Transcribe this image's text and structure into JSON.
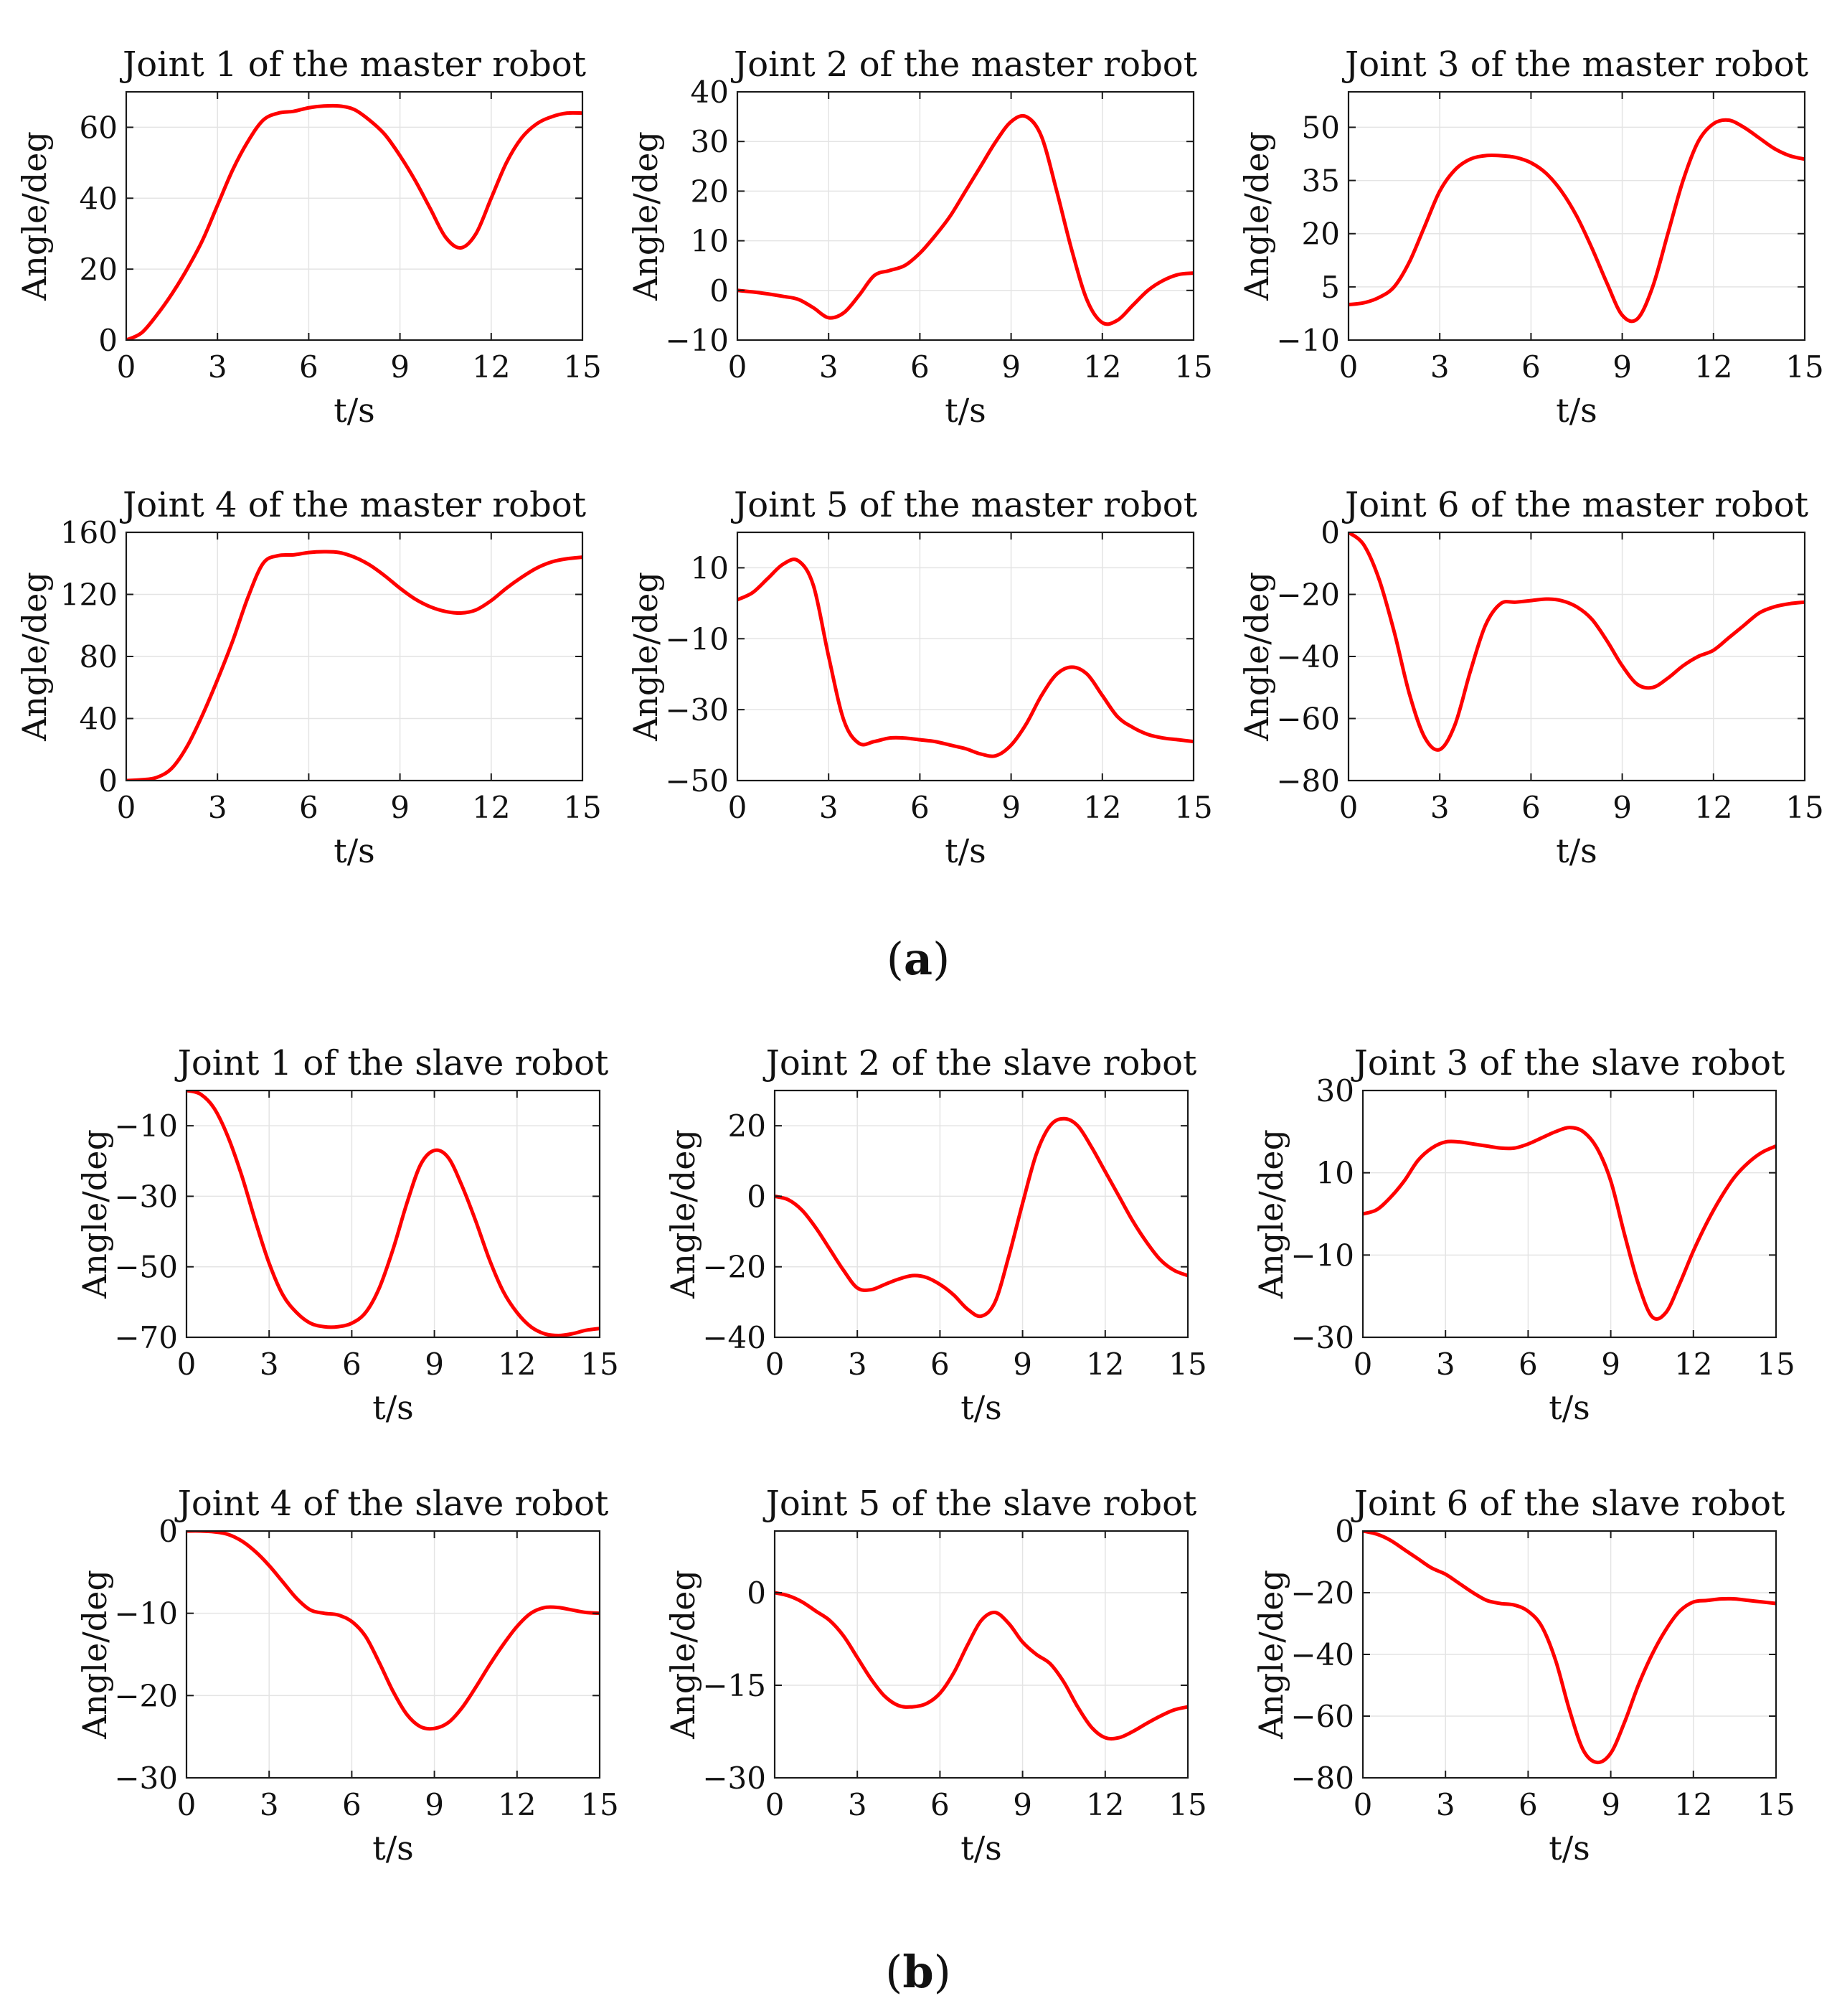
{
  "figure": {
    "group_labels": [
      {
        "open": "(",
        "letter": "a",
        "close": ")"
      },
      {
        "open": "(",
        "letter": "b",
        "close": ")"
      }
    ]
  },
  "chart_data": [
    {
      "type": "line",
      "title": "Joint 1 of the master robot",
      "xlabel": "t/s",
      "ylabel": "Angle/deg",
      "xlim": [
        0,
        15
      ],
      "ylim": [
        0,
        70
      ],
      "xticks": [
        0,
        3,
        6,
        9,
        12,
        15
      ],
      "yticks": [
        0,
        20,
        40,
        60
      ],
      "ytick_labels": [
        "0",
        "20",
        "40",
        "60"
      ],
      "grid": true,
      "color": "#ff0000",
      "x": [
        0,
        0.5,
        1,
        1.5,
        2,
        2.5,
        3,
        3.5,
        4,
        4.5,
        5,
        5.5,
        6,
        6.5,
        7,
        7.5,
        8,
        8.5,
        9,
        9.5,
        10,
        10.5,
        11,
        11.5,
        12,
        12.5,
        13,
        13.5,
        14,
        14.5,
        15
      ],
      "y": [
        0,
        2,
        7,
        13,
        20,
        28,
        38,
        48,
        56,
        62,
        64,
        64.5,
        65.5,
        66,
        66,
        65,
        62,
        58,
        52,
        45,
        37,
        29,
        26,
        30,
        40,
        50,
        57,
        61,
        63,
        64,
        64
      ]
    },
    {
      "type": "line",
      "title": "Joint 2 of the master robot",
      "xlabel": "t/s",
      "ylabel": "Angle/deg",
      "xlim": [
        0,
        15
      ],
      "ylim": [
        -10,
        40
      ],
      "xticks": [
        0,
        3,
        6,
        9,
        12,
        15
      ],
      "yticks": [
        -10,
        0,
        10,
        20,
        30,
        40
      ],
      "ytick_labels": [
        "−10",
        "0",
        "10",
        "20",
        "30",
        "40"
      ],
      "grid": true,
      "color": "#ff0000",
      "x": [
        0,
        0.5,
        1,
        1.5,
        2,
        2.5,
        3,
        3.5,
        4,
        4.5,
        5,
        5.5,
        6,
        6.5,
        7,
        7.5,
        8,
        8.5,
        9,
        9.5,
        10,
        10.5,
        11,
        11.5,
        12,
        12.5,
        13,
        13.5,
        14,
        14.5,
        15
      ],
      "y": [
        0,
        -0.3,
        -0.7,
        -1.2,
        -1.8,
        -3.5,
        -5.5,
        -4.5,
        -1,
        3,
        4,
        5,
        7.5,
        11,
        15,
        20,
        25,
        30,
        34,
        35,
        31,
        20,
        8,
        -2,
        -6.5,
        -6,
        -3,
        0,
        2,
        3.2,
        3.5
      ]
    },
    {
      "type": "line",
      "title": "Joint 3 of the master robot",
      "xlabel": "t/s",
      "ylabel": "Angle/deg",
      "xlim": [
        0,
        15
      ],
      "ylim": [
        -10,
        60
      ],
      "xticks": [
        0,
        3,
        6,
        9,
        12,
        15
      ],
      "yticks": [
        -10,
        5,
        20,
        35,
        50
      ],
      "ytick_labels": [
        "−10",
        "5",
        "20",
        "35",
        "50"
      ],
      "grid": true,
      "color": "#ff0000",
      "x": [
        0,
        0.5,
        1,
        1.5,
        2,
        2.5,
        3,
        3.5,
        4,
        4.5,
        5,
        5.5,
        6,
        6.5,
        7,
        7.5,
        8,
        8.5,
        9,
        9.5,
        10,
        10.5,
        11,
        11.5,
        12,
        12.5,
        13,
        13.5,
        14,
        14.5,
        15
      ],
      "y": [
        0,
        0.5,
        2,
        5,
        12,
        22,
        32,
        38,
        41,
        42,
        42,
        41.5,
        40,
        37,
        32,
        25,
        16,
        6,
        -3,
        -4,
        5,
        20,
        35,
        46,
        51,
        52,
        50,
        47,
        44,
        42,
        41
      ]
    },
    {
      "type": "line",
      "title": "Joint 4 of the master robot",
      "xlabel": "t/s",
      "ylabel": "Angle/deg",
      "xlim": [
        0,
        15
      ],
      "ylim": [
        0,
        160
      ],
      "xticks": [
        0,
        3,
        6,
        9,
        12,
        15
      ],
      "yticks": [
        0,
        40,
        80,
        120,
        160
      ],
      "ytick_labels": [
        "0",
        "40",
        "80",
        "120",
        "160"
      ],
      "grid": true,
      "color": "#ff0000",
      "x": [
        0,
        0.5,
        1,
        1.5,
        2,
        2.5,
        3,
        3.5,
        4,
        4.5,
        5,
        5.5,
        6,
        6.5,
        7,
        7.5,
        8,
        8.5,
        9,
        9.5,
        10,
        10.5,
        11,
        11.5,
        12,
        12.5,
        13,
        13.5,
        14,
        14.5,
        15
      ],
      "y": [
        0,
        0.5,
        2,
        8,
        22,
        42,
        65,
        90,
        118,
        140,
        145,
        145.5,
        147,
        147.5,
        147,
        144,
        139,
        132,
        124,
        117,
        112,
        109,
        108,
        110,
        116,
        124,
        131,
        137,
        141,
        143,
        144
      ]
    },
    {
      "type": "line",
      "title": "Joint 5 of the master robot",
      "xlabel": "t/s",
      "ylabel": "Angle/deg",
      "xlim": [
        0,
        15
      ],
      "ylim": [
        -50,
        20
      ],
      "xticks": [
        0,
        3,
        6,
        9,
        12,
        15
      ],
      "yticks": [
        -50,
        -30,
        -10,
        10
      ],
      "ytick_labels": [
        "−50",
        "−30",
        "−10",
        "10"
      ],
      "grid": true,
      "color": "#ff0000",
      "x": [
        0,
        0.5,
        1,
        1.5,
        2,
        2.5,
        3,
        3.5,
        4,
        4.5,
        5,
        5.5,
        6,
        6.5,
        7,
        7.5,
        8,
        8.5,
        9,
        9.5,
        10,
        10.5,
        11,
        11.5,
        12,
        12.5,
        13,
        13.5,
        14,
        14.5,
        15
      ],
      "y": [
        1,
        3,
        7,
        11,
        12,
        5,
        -15,
        -33,
        -39.5,
        -39,
        -38,
        -38,
        -38.5,
        -39,
        -40,
        -41,
        -42.5,
        -43,
        -40,
        -34,
        -26,
        -20,
        -18,
        -20,
        -26,
        -32,
        -35,
        -37,
        -38,
        -38.5,
        -39
      ]
    },
    {
      "type": "line",
      "title": "Joint 6 of the master robot",
      "xlabel": "t/s",
      "ylabel": "Angle/deg",
      "xlim": [
        0,
        15
      ],
      "ylim": [
        -80,
        0
      ],
      "xticks": [
        0,
        3,
        6,
        9,
        12,
        15
      ],
      "yticks": [
        -80,
        -60,
        -40,
        -20,
        0
      ],
      "ytick_labels": [
        "−80",
        "−60",
        "−40",
        "−20",
        "0"
      ],
      "grid": true,
      "color": "#ff0000",
      "x": [
        0,
        0.5,
        1,
        1.5,
        2,
        2.5,
        3,
        3.5,
        4,
        4.5,
        5,
        5.5,
        6,
        6.5,
        7,
        7.5,
        8,
        8.5,
        9,
        9.5,
        10,
        10.5,
        11,
        11.5,
        12,
        12.5,
        13,
        13.5,
        14,
        14.5,
        15
      ],
      "y": [
        0,
        -4,
        -15,
        -32,
        -52,
        -66,
        -70,
        -62,
        -45,
        -30,
        -23,
        -22.5,
        -22,
        -21.5,
        -22,
        -24,
        -28,
        -35,
        -43,
        -49,
        -50,
        -47,
        -43,
        -40,
        -38,
        -34,
        -30,
        -26,
        -24,
        -23,
        -22.5
      ]
    },
    {
      "type": "line",
      "title": "Joint 1 of the slave robot",
      "xlabel": "t/s",
      "ylabel": "Angle/deg",
      "xlim": [
        0,
        15
      ],
      "ylim": [
        -70,
        0
      ],
      "xticks": [
        0,
        3,
        6,
        9,
        12,
        15
      ],
      "yticks": [
        -70,
        -50,
        -30,
        -10
      ],
      "ytick_labels": [
        "−70",
        "−50",
        "−30",
        "−10"
      ],
      "grid": true,
      "color": "#ff0000",
      "x": [
        0,
        0.5,
        1,
        1.5,
        2,
        2.5,
        3,
        3.5,
        4,
        4.5,
        5,
        5.5,
        6,
        6.5,
        7,
        7.5,
        8,
        8.5,
        9,
        9.5,
        10,
        10.5,
        11,
        11.5,
        12,
        12.5,
        13,
        13.5,
        14,
        14.5,
        15
      ],
      "y": [
        0,
        -1,
        -5,
        -13,
        -24,
        -37,
        -49,
        -58,
        -63,
        -66,
        -67,
        -67,
        -66,
        -63,
        -56,
        -45,
        -32,
        -21,
        -17,
        -19,
        -27,
        -37,
        -48,
        -57,
        -63,
        -67,
        -69,
        -69.5,
        -69,
        -68,
        -67.5
      ]
    },
    {
      "type": "line",
      "title": "Joint 2 of the slave robot",
      "xlabel": "t/s",
      "ylabel": "Angle/deg",
      "xlim": [
        0,
        15
      ],
      "ylim": [
        -40,
        30
      ],
      "xticks": [
        0,
        3,
        6,
        9,
        12,
        15
      ],
      "yticks": [
        -40,
        -20,
        0,
        20
      ],
      "ytick_labels": [
        "−40",
        "−20",
        "0",
        "20"
      ],
      "grid": true,
      "color": "#ff0000",
      "x": [
        0,
        0.5,
        1,
        1.5,
        2,
        2.5,
        3,
        3.5,
        4,
        4.5,
        5,
        5.5,
        6,
        6.5,
        7,
        7.5,
        8,
        8.5,
        9,
        9.5,
        10,
        10.5,
        11,
        11.5,
        12,
        12.5,
        13,
        13.5,
        14,
        14.5,
        15
      ],
      "y": [
        0,
        -1,
        -4,
        -9,
        -15,
        -21,
        -26,
        -26.5,
        -25,
        -23.5,
        -22.5,
        -23,
        -25,
        -28,
        -32,
        -34,
        -30,
        -17,
        -2,
        12,
        20,
        22,
        20,
        14,
        7,
        0,
        -7,
        -13,
        -18,
        -21,
        -22.5
      ]
    },
    {
      "type": "line",
      "title": "Joint 3 of the slave robot",
      "xlabel": "t/s",
      "ylabel": "Angle/deg",
      "xlim": [
        0,
        15
      ],
      "ylim": [
        -30,
        30
      ],
      "xticks": [
        0,
        3,
        6,
        9,
        12,
        15
      ],
      "yticks": [
        -30,
        -10,
        10,
        30
      ],
      "ytick_labels": [
        "−30",
        "−10",
        "10",
        "30"
      ],
      "grid": true,
      "color": "#ff0000",
      "x": [
        0,
        0.5,
        1,
        1.5,
        2,
        2.5,
        3,
        3.5,
        4,
        4.5,
        5,
        5.5,
        6,
        6.5,
        7,
        7.5,
        8,
        8.5,
        9,
        9.5,
        10,
        10.5,
        11,
        11.5,
        12,
        12.5,
        13,
        13.5,
        14,
        14.5,
        15
      ],
      "y": [
        0,
        1,
        4,
        8,
        13,
        16,
        17.5,
        17.5,
        17,
        16.5,
        16,
        16,
        17,
        18.5,
        20,
        21,
        20,
        16,
        8,
        -5,
        -17,
        -25,
        -24,
        -17,
        -9,
        -2,
        4,
        9,
        12.5,
        15,
        16.5
      ]
    },
    {
      "type": "line",
      "title": "Joint 4 of the slave robot",
      "xlabel": "t/s",
      "ylabel": "Angle/deg",
      "xlim": [
        0,
        15
      ],
      "ylim": [
        -30,
        0
      ],
      "xticks": [
        0,
        3,
        6,
        9,
        12,
        15
      ],
      "yticks": [
        -30,
        -20,
        -10,
        0
      ],
      "ytick_labels": [
        "−30",
        "−20",
        "−10",
        "0"
      ],
      "grid": true,
      "color": "#ff0000",
      "x": [
        0,
        0.5,
        1,
        1.5,
        2,
        2.5,
        3,
        3.5,
        4,
        4.5,
        5,
        5.5,
        6,
        6.5,
        7,
        7.5,
        8,
        8.5,
        9,
        9.5,
        10,
        10.5,
        11,
        11.5,
        12,
        12.5,
        13,
        13.5,
        14,
        14.5,
        15
      ],
      "y": [
        0,
        0,
        -0.1,
        -0.4,
        -1.2,
        -2.5,
        -4.2,
        -6.2,
        -8.2,
        -9.6,
        -10,
        -10.2,
        -11,
        -12.8,
        -16,
        -19.5,
        -22.3,
        -23.8,
        -24,
        -23.3,
        -21.5,
        -19,
        -16.3,
        -13.8,
        -11.6,
        -10,
        -9.3,
        -9.3,
        -9.6,
        -9.9,
        -10
      ]
    },
    {
      "type": "line",
      "title": "Joint 5 of the slave robot",
      "xlabel": "t/s",
      "ylabel": "Angle/deg",
      "xlim": [
        0,
        15
      ],
      "ylim": [
        -30,
        10
      ],
      "xticks": [
        0,
        3,
        6,
        9,
        12,
        15
      ],
      "yticks": [
        -30,
        -15,
        0
      ],
      "ytick_labels": [
        "−30",
        "−15",
        "0"
      ],
      "grid": true,
      "color": "#ff0000",
      "x": [
        0,
        0.5,
        1,
        1.5,
        2,
        2.5,
        3,
        3.5,
        4,
        4.5,
        5,
        5.5,
        6,
        6.5,
        7,
        7.5,
        8,
        8.5,
        9,
        9.5,
        10,
        10.5,
        11,
        11.5,
        12,
        12.5,
        13,
        13.5,
        14,
        14.5,
        15
      ],
      "y": [
        0,
        -0.5,
        -1.5,
        -3,
        -4.5,
        -7,
        -10.5,
        -14,
        -16.8,
        -18.3,
        -18.5,
        -18,
        -16.3,
        -13,
        -8.5,
        -4.5,
        -3.2,
        -5,
        -8,
        -10,
        -11.5,
        -14.5,
        -18.5,
        -21.8,
        -23.5,
        -23.5,
        -22.5,
        -21.2,
        -20,
        -19,
        -18.5
      ]
    },
    {
      "type": "line",
      "title": "Joint 6 of the slave robot",
      "xlabel": "t/s",
      "ylabel": "Angle/deg",
      "xlim": [
        0,
        15
      ],
      "ylim": [
        -80,
        0
      ],
      "xticks": [
        0,
        3,
        6,
        9,
        12,
        15
      ],
      "yticks": [
        -80,
        -60,
        -40,
        -20,
        0
      ],
      "ytick_labels": [
        "−80",
        "−60",
        "−40",
        "−20",
        "0"
      ],
      "grid": true,
      "color": "#ff0000",
      "x": [
        0,
        0.5,
        1,
        1.5,
        2,
        2.5,
        3,
        3.5,
        4,
        4.5,
        5,
        5.5,
        6,
        6.5,
        7,
        7.5,
        8,
        8.5,
        9,
        9.5,
        10,
        10.5,
        11,
        11.5,
        12,
        12.5,
        13,
        13.5,
        14,
        14.5,
        15
      ],
      "y": [
        0,
        -1,
        -3,
        -6,
        -9,
        -12,
        -14,
        -17,
        -20,
        -22.5,
        -23.5,
        -24,
        -26,
        -31,
        -42,
        -58,
        -71,
        -75,
        -72,
        -62,
        -50,
        -40,
        -32,
        -26,
        -23,
        -22.5,
        -22,
        -22,
        -22.5,
        -23,
        -23.5
      ]
    }
  ]
}
